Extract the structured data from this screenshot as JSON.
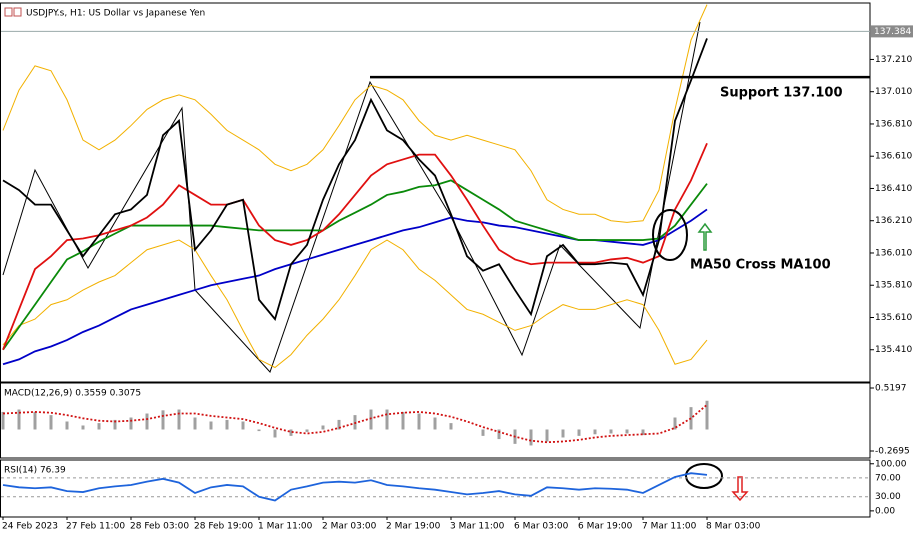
{
  "chart_data": [
    {
      "type": "line",
      "title": "USDJPY.s, H1:  US Dollar vs Japanese Yen",
      "categories": [
        "24 Feb 2023",
        null,
        null,
        null,
        "27 Feb 11:00",
        null,
        null,
        null,
        "28 Feb 03:00",
        null,
        null,
        null,
        "28 Feb 19:00",
        null,
        null,
        null,
        "1 Mar 11:00",
        null,
        null,
        null,
        "2 Mar 03:00",
        null,
        null,
        null,
        "2 Mar 19:00",
        null,
        null,
        null,
        "3 Mar 11:00",
        null,
        null,
        null,
        "6 Mar 03:00",
        null,
        null,
        null,
        "6 Mar 19:00",
        null,
        null,
        null,
        "7 Mar 11:00",
        null,
        null,
        null,
        "8 Mar 03:00"
      ],
      "series": [
        {
          "color": "#f2b100",
          "values": [
            136.77,
            137.02,
            137.17,
            137.14,
            136.96,
            136.71,
            136.65,
            136.71,
            136.8,
            136.9,
            136.96,
            136.99,
            136.96,
            136.87,
            136.77,
            136.71,
            136.65,
            136.56,
            136.52,
            136.56,
            136.65,
            136.8,
            136.96,
            137.05,
            137.02,
            136.96,
            136.83,
            136.74,
            136.71,
            136.74,
            136.71,
            136.68,
            136.65,
            136.52,
            136.34,
            136.28,
            136.25,
            136.25,
            136.21,
            136.2,
            136.21,
            136.4,
            136.9,
            137.33,
            137.55
          ]
        },
        {
          "color": "#f2b100",
          "values": [
            135.44,
            135.56,
            135.6,
            135.69,
            135.72,
            135.78,
            135.83,
            135.87,
            135.95,
            136.03,
            136.06,
            136.09,
            136.03,
            135.87,
            135.72,
            135.53,
            135.35,
            135.3,
            135.38,
            135.5,
            135.6,
            135.72,
            135.87,
            136.03,
            136.09,
            136.03,
            135.91,
            135.84,
            135.75,
            135.66,
            135.63,
            135.58,
            135.53,
            135.56,
            135.63,
            135.69,
            135.66,
            135.66,
            135.69,
            135.72,
            135.69,
            135.53,
            135.32,
            135.35,
            135.47
          ]
        },
        {
          "color": "#0000c8",
          "values": [
            135.32,
            135.35,
            135.4,
            135.43,
            135.47,
            135.52,
            135.56,
            135.61,
            135.66,
            135.69,
            135.72,
            135.75,
            135.78,
            135.81,
            135.83,
            135.85,
            135.87,
            135.91,
            135.94,
            135.97,
            136.0,
            136.03,
            136.06,
            136.09,
            136.12,
            136.15,
            136.17,
            136.2,
            136.23,
            136.21,
            136.2,
            136.18,
            136.17,
            136.15,
            136.13,
            136.11,
            136.09,
            136.09,
            136.08,
            136.07,
            136.06,
            136.09,
            136.15,
            136.21,
            136.28
          ]
        },
        {
          "color": "#0a8a0a",
          "values": [
            135.41,
            135.55,
            135.69,
            135.83,
            135.97,
            136.02,
            136.08,
            136.13,
            136.18,
            136.18,
            136.18,
            136.18,
            136.18,
            136.18,
            136.17,
            136.16,
            136.15,
            136.15,
            136.15,
            136.15,
            136.15,
            136.21,
            136.26,
            136.31,
            136.37,
            136.39,
            136.42,
            136.43,
            136.46,
            136.4,
            136.34,
            136.28,
            136.21,
            136.18,
            136.15,
            136.12,
            136.09,
            136.09,
            136.09,
            136.09,
            136.09,
            136.1,
            136.18,
            136.31,
            136.44
          ]
        },
        {
          "color": "#e01010",
          "values": [
            135.41,
            135.66,
            135.91,
            135.99,
            136.09,
            136.1,
            136.12,
            136.15,
            136.18,
            136.23,
            136.31,
            136.43,
            136.37,
            136.31,
            136.31,
            136.34,
            136.18,
            136.09,
            136.06,
            136.09,
            136.15,
            136.25,
            136.37,
            136.49,
            136.56,
            136.59,
            136.62,
            136.62,
            136.49,
            136.34,
            136.18,
            136.03,
            135.97,
            135.94,
            135.95,
            135.95,
            135.95,
            135.95,
            135.97,
            135.98,
            135.95,
            135.99,
            136.28,
            136.46,
            136.69
          ]
        },
        {
          "color": "#000000",
          "values": [
            136.46,
            136.4,
            136.31,
            136.31,
            136.15,
            135.99,
            136.12,
            136.25,
            136.28,
            136.37,
            136.74,
            136.83,
            136.03,
            136.15,
            136.31,
            136.34,
            135.72,
            135.6,
            135.94,
            136.06,
            136.34,
            136.56,
            136.71,
            136.96,
            136.77,
            136.71,
            136.59,
            136.49,
            136.25,
            135.99,
            135.9,
            135.94,
            135.78,
            135.63,
            135.99,
            136.06,
            135.94,
            135.94,
            135.95,
            135.94,
            135.75,
            136.09,
            136.83,
            137.08,
            137.34
          ]
        }
      ],
      "ylim": [
        135.21,
        137.56
      ],
      "yticks": [
        {
          "value": 137.21,
          "label": "137.210"
        },
        {
          "value": 137.01,
          "label": "137.010"
        },
        {
          "value": 136.81,
          "label": "136.810"
        },
        {
          "value": 136.61,
          "label": "136.610"
        },
        {
          "value": 136.41,
          "label": "136.410"
        },
        {
          "value": 136.21,
          "label": "136.210"
        },
        {
          "value": 136.01,
          "label": "136.010"
        },
        {
          "value": 135.81,
          "label": "135.810"
        },
        {
          "value": 135.61,
          "label": "135.610"
        },
        {
          "value": 135.41,
          "label": "135.410"
        }
      ],
      "last_price": 137.384,
      "support": {
        "value": 137.1,
        "label": "Support 137.100"
      },
      "annotation": "MA50 Cross MA100"
    },
    {
      "type": "combo",
      "title": "MACD(12,26,9) 0.3559 0.3075",
      "series": [
        {
          "type": "bar",
          "color": "#a0a0a0",
          "values": [
            0.22,
            0.25,
            0.22,
            0.18,
            0.1,
            0.05,
            0.08,
            0.12,
            0.15,
            0.2,
            0.24,
            0.25,
            0.15,
            0.1,
            0.12,
            0.1,
            -0.02,
            -0.1,
            -0.08,
            -0.03,
            0.05,
            0.12,
            0.18,
            0.25,
            0.25,
            0.22,
            0.2,
            0.15,
            0.08,
            0.0,
            -0.08,
            -0.12,
            -0.18,
            -0.2,
            -0.15,
            -0.1,
            -0.08,
            -0.06,
            -0.05,
            -0.05,
            -0.07,
            0.0,
            0.15,
            0.28,
            0.36
          ]
        },
        {
          "type": "line",
          "dashed": true,
          "color": "#d01010",
          "values": [
            0.2,
            0.21,
            0.22,
            0.21,
            0.18,
            0.14,
            0.11,
            0.1,
            0.11,
            0.13,
            0.17,
            0.2,
            0.2,
            0.17,
            0.15,
            0.13,
            0.08,
            0.02,
            -0.03,
            -0.05,
            -0.03,
            0.02,
            0.08,
            0.14,
            0.19,
            0.21,
            0.22,
            0.2,
            0.16,
            0.1,
            0.03,
            -0.03,
            -0.09,
            -0.14,
            -0.16,
            -0.15,
            -0.13,
            -0.1,
            -0.08,
            -0.07,
            -0.06,
            -0.05,
            0.02,
            0.14,
            0.31
          ]
        }
      ],
      "ylim": [
        -0.3572,
        0.5824
      ],
      "yticks": [
        0.5197,
        -0.2695
      ]
    },
    {
      "type": "line",
      "title": "RSI(14) 76.39",
      "series": [
        {
          "color": "#1e64dc",
          "values": [
            55,
            50,
            48,
            50,
            42,
            40,
            48,
            52,
            55,
            62,
            68,
            60,
            38,
            50,
            55,
            52,
            30,
            22,
            45,
            52,
            60,
            62,
            60,
            65,
            55,
            52,
            48,
            45,
            40,
            35,
            38,
            42,
            35,
            32,
            50,
            48,
            45,
            48,
            47,
            45,
            38,
            55,
            72,
            80,
            76.39
          ]
        }
      ],
      "ylim": [
        -13,
        108
      ],
      "yticks": [
        {
          "value": 100,
          "label": "100.00"
        },
        {
          "value": 0,
          "label": "0.00"
        }
      ],
      "levels": [
        {
          "value": 70,
          "label": "70.00"
        },
        {
          "value": 30,
          "label": "30.00"
        }
      ]
    }
  ]
}
